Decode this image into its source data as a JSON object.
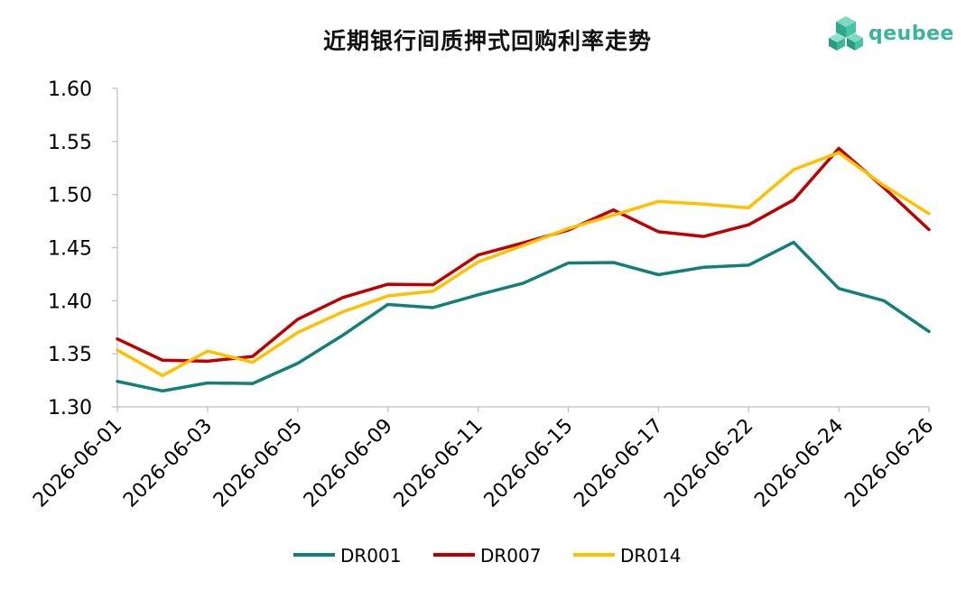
{
  "brand": {
    "name": "qeubee",
    "logo_icon": "cube-cluster-icon",
    "color": "#3bb59a"
  },
  "chart_data": {
    "type": "line",
    "title": "近期银行间质押式回购利率走势",
    "xlabel": "",
    "ylabel": "",
    "ylim": [
      1.3,
      1.6
    ],
    "yticks": [
      "1.30",
      "1.35",
      "1.40",
      "1.45",
      "1.50",
      "1.55",
      "1.60"
    ],
    "xticks": [
      "2026-06-01",
      "2026-06-03",
      "2026-06-05",
      "2026-06-09",
      "2026-06-11",
      "2026-06-15",
      "2026-06-17",
      "2026-06-22",
      "2026-06-24",
      "2026-06-26"
    ],
    "grid": false,
    "legend": "bottom",
    "series": [
      {
        "name": "DR001",
        "color": "#128078",
        "values": [
          1.324,
          1.315,
          1.3225,
          1.322,
          1.341,
          1.3675,
          1.3965,
          1.3935,
          1.4055,
          1.4165,
          1.4355,
          1.436,
          1.4245,
          1.4315,
          1.4335,
          1.455,
          1.4115,
          1.4,
          1.371
        ]
      },
      {
        "name": "DR007",
        "color": "#c00000",
        "values": [
          1.364,
          1.344,
          1.343,
          1.3475,
          1.3825,
          1.403,
          1.4155,
          1.415,
          1.443,
          1.4545,
          1.4665,
          1.4855,
          1.465,
          1.4605,
          1.4715,
          1.495,
          1.5435,
          1.5065,
          1.467
        ]
      },
      {
        "name": "DR014",
        "color": "#ffc000",
        "values": [
          1.3535,
          1.3295,
          1.3525,
          1.342,
          1.37,
          1.3895,
          1.4045,
          1.409,
          1.4365,
          1.452,
          1.468,
          1.4805,
          1.4935,
          1.491,
          1.4875,
          1.5235,
          1.5395,
          1.5085,
          1.482
        ]
      }
    ]
  }
}
